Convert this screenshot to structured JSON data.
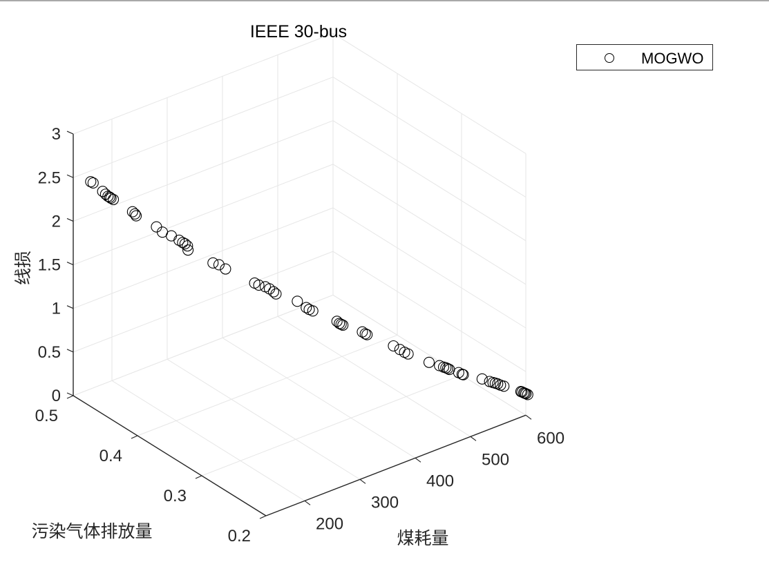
{
  "figure": {
    "title": "IEEE 30-bus",
    "legend": {
      "entries": [
        {
          "label": "MOGWO",
          "marker": "circle-open",
          "color": "#000000"
        }
      ]
    },
    "colors": {
      "axis": "#262626",
      "grid": "#e6e6e6",
      "marker": "#000000",
      "background": "#ffffff"
    }
  },
  "chart_data": {
    "type": "scatter3d",
    "title": "IEEE 30-bus",
    "xlabel": "煤耗量",
    "ylabel": "污染气体排放量",
    "zlabel": "线损",
    "xticks": [
      "200",
      "300",
      "400",
      "500",
      "600"
    ],
    "yticks": [
      "0.2",
      "0.3",
      "0.4",
      "0.5"
    ],
    "zticks": [
      "0",
      "0.5",
      "1",
      "1.5",
      "2",
      "2.5",
      "3"
    ],
    "xlim": [
      130,
      600
    ],
    "ylim": [
      0.2,
      0.5
    ],
    "zlim": [
      0,
      3
    ],
    "grid": true,
    "legend_position": "northeast outside",
    "series": [
      {
        "name": "MOGWO",
        "marker": "o",
        "points": [
          [
            150,
            0.49,
            2.45
          ],
          [
            152,
            0.488,
            2.44
          ],
          [
            160,
            0.48,
            2.36
          ],
          [
            163,
            0.478,
            2.33
          ],
          [
            165,
            0.476,
            2.31
          ],
          [
            167,
            0.475,
            2.3
          ],
          [
            168,
            0.474,
            2.29
          ],
          [
            170,
            0.472,
            2.28
          ],
          [
            185,
            0.455,
            2.18
          ],
          [
            187,
            0.453,
            2.16
          ],
          [
            188,
            0.452,
            2.14
          ],
          [
            205,
            0.435,
            2.05
          ],
          [
            210,
            0.43,
            2.0
          ],
          [
            218,
            0.423,
            1.97
          ],
          [
            225,
            0.417,
            1.93
          ],
          [
            228,
            0.414,
            1.91
          ],
          [
            230,
            0.412,
            1.9
          ],
          [
            232,
            0.41,
            1.88
          ],
          [
            233,
            0.41,
            1.83
          ],
          [
            255,
            0.39,
            1.72
          ],
          [
            260,
            0.385,
            1.71
          ],
          [
            266,
            0.38,
            1.67
          ],
          [
            292,
            0.357,
            1.55
          ],
          [
            296,
            0.354,
            1.53
          ],
          [
            302,
            0.349,
            1.52
          ],
          [
            306,
            0.346,
            1.5
          ],
          [
            310,
            0.343,
            1.47
          ],
          [
            312,
            0.341,
            1.45
          ],
          [
            332,
            0.325,
            1.39
          ],
          [
            340,
            0.318,
            1.33
          ],
          [
            343,
            0.316,
            1.31
          ],
          [
            346,
            0.313,
            1.3
          ],
          [
            370,
            0.296,
            1.2
          ],
          [
            372,
            0.294,
            1.18
          ],
          [
            374,
            0.293,
            1.17
          ],
          [
            376,
            0.292,
            1.16
          ],
          [
            395,
            0.278,
            1.1
          ],
          [
            398,
            0.276,
            1.08
          ],
          [
            400,
            0.275,
            1.07
          ],
          [
            428,
            0.258,
            0.95
          ],
          [
            435,
            0.254,
            0.91
          ],
          [
            440,
            0.251,
            0.88
          ],
          [
            444,
            0.249,
            0.86
          ],
          [
            468,
            0.237,
            0.76
          ],
          [
            480,
            0.231,
            0.72
          ],
          [
            485,
            0.229,
            0.7
          ],
          [
            488,
            0.228,
            0.69
          ],
          [
            490,
            0.227,
            0.68
          ],
          [
            492,
            0.226,
            0.67
          ],
          [
            503,
            0.221,
            0.63
          ],
          [
            507,
            0.219,
            0.61
          ],
          [
            509,
            0.219,
            0.6
          ],
          [
            535,
            0.212,
            0.52
          ],
          [
            545,
            0.209,
            0.48
          ],
          [
            550,
            0.208,
            0.46
          ],
          [
            553,
            0.207,
            0.45
          ],
          [
            556,
            0.206,
            0.44
          ],
          [
            560,
            0.205,
            0.42
          ],
          [
            565,
            0.204,
            0.4
          ],
          [
            590,
            0.199,
            0.3
          ],
          [
            592,
            0.199,
            0.29
          ],
          [
            594,
            0.198,
            0.28
          ],
          [
            596,
            0.198,
            0.27
          ],
          [
            598,
            0.198,
            0.26
          ],
          [
            600,
            0.197,
            0.25
          ]
        ]
      }
    ]
  }
}
